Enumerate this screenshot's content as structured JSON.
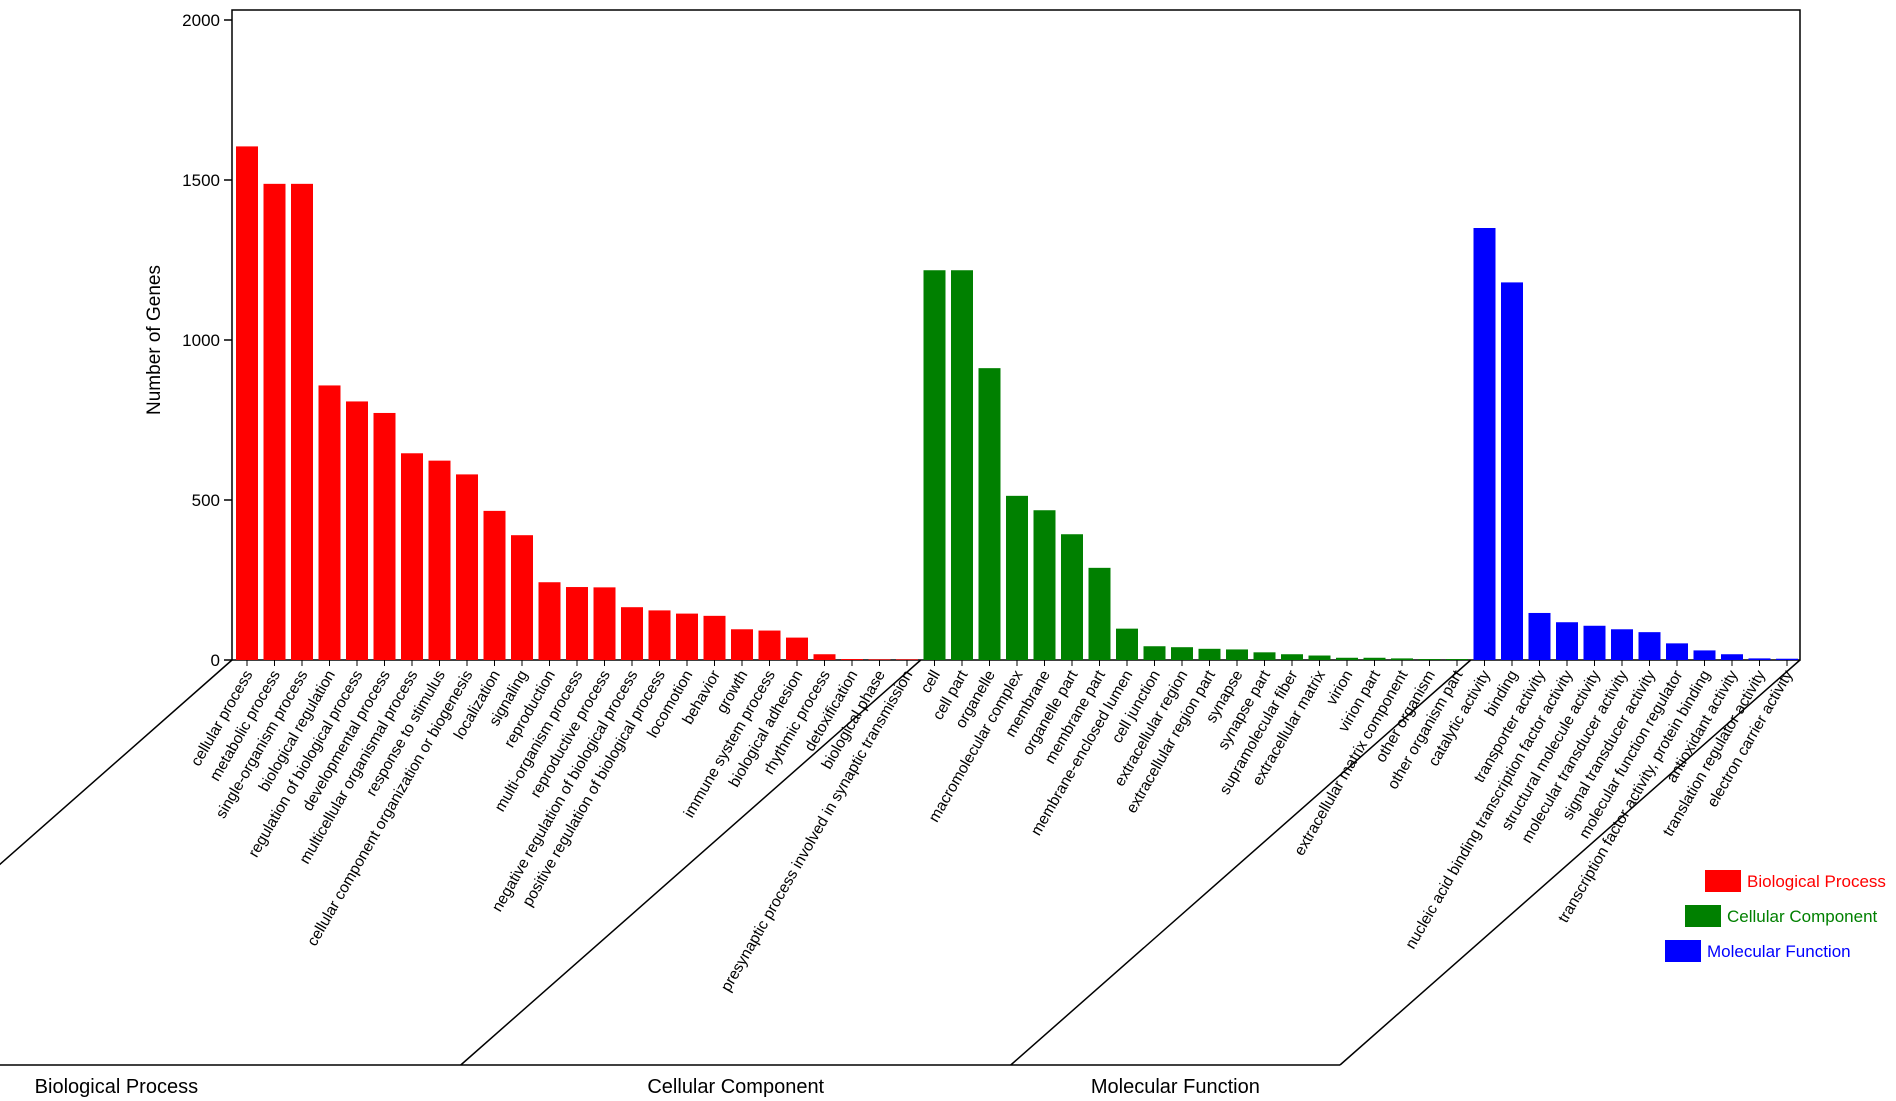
{
  "chart_data": {
    "type": "bar",
    "ylabel": "Number of Genes",
    "ylim": [
      0,
      2000
    ],
    "yticks": [
      0,
      500,
      1000,
      1500,
      2000
    ],
    "grid": false,
    "legend_position": "right",
    "groups": [
      {
        "name": "Biological Process",
        "color": "#ff0000",
        "categories": [
          "cellular process",
          "metabolic process",
          "single-organism process",
          "biological regulation",
          "regulation of biological process",
          "developmental process",
          "multicellular organismal process",
          "response to stimulus",
          "cellular component organization or biogenesis",
          "localization",
          "signaling",
          "reproduction",
          "multi-organism process",
          "reproductive process",
          "negative regulation of biological process",
          "positive regulation of biological process",
          "locomotion",
          "behavior",
          "growth",
          "immune system process",
          "biological adhesion",
          "rhythmic process",
          "detoxification",
          "biological phase",
          "presynaptic process involved in synaptic transmission"
        ],
        "values": [
          1605,
          1488,
          1488,
          858,
          808,
          772,
          646,
          623,
          580,
          466,
          390,
          243,
          228,
          227,
          165,
          155,
          145,
          138,
          96,
          92,
          70,
          18,
          3,
          2,
          2
        ]
      },
      {
        "name": "Cellular Component",
        "color": "#008000",
        "categories": [
          "cell",
          "cell part",
          "organelle",
          "macromolecular complex",
          "membrane",
          "organelle part",
          "membrane part",
          "membrane-enclosed lumen",
          "cell junction",
          "extracellular region",
          "extracellular region part",
          "synapse",
          "synapse part",
          "supramolecular fiber",
          "extracellular matrix",
          "virion",
          "virion part",
          "extracellular matrix component",
          "other organism",
          "other organism part"
        ],
        "values": [
          1218,
          1218,
          912,
          513,
          468,
          393,
          288,
          98,
          43,
          40,
          35,
          33,
          24,
          18,
          14,
          7,
          7,
          5,
          3,
          3
        ]
      },
      {
        "name": "Molecular Function",
        "color": "#0000ff",
        "categories": [
          "catalytic activity",
          "binding",
          "transporter activity",
          "nucleic acid binding transcription factor activity",
          "structural molecule activity",
          "molecular transducer activity",
          "signal transducer activity",
          "molecular function regulator",
          "transcription factor activity, protein binding",
          "antioxidant activity",
          "translation regulator activity",
          "electron carrier activity"
        ],
        "values": [
          1350,
          1180,
          147,
          118,
          107,
          96,
          87,
          52,
          30,
          18,
          5,
          4
        ]
      }
    ]
  }
}
